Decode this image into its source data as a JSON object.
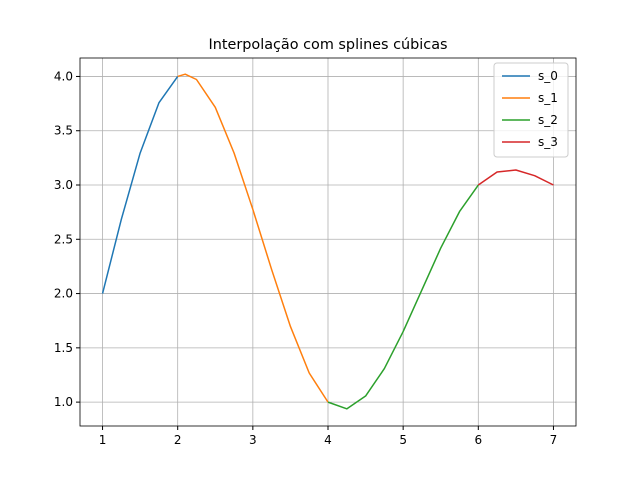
{
  "chart_data": {
    "type": "line",
    "title": "Interpolação com splines cúbicas",
    "series": [
      {
        "name": "s_0",
        "color": "#1f77b4",
        "x": [
          1,
          1.25,
          1.5,
          1.75,
          2
        ],
        "values": [
          2.0,
          2.684,
          3.294,
          3.757,
          4.0
        ]
      },
      {
        "name": "s_1",
        "color": "#ff7f0e",
        "x": [
          2,
          2.1,
          2.25,
          2.5,
          2.75,
          3,
          3.25,
          3.5,
          3.75,
          4
        ],
        "values": [
          4.0,
          4.021,
          3.972,
          3.716,
          3.295,
          2.775,
          2.221,
          1.697,
          1.268,
          1.0
        ]
      },
      {
        "name": "s_2",
        "color": "#2ca02c",
        "x": [
          4,
          4.25,
          4.5,
          4.75,
          5,
          5.25,
          5.5,
          5.75,
          6
        ],
        "values": [
          1.0,
          0.938,
          1.056,
          1.309,
          1.65,
          2.035,
          2.419,
          2.755,
          3.0
        ]
      },
      {
        "name": "s_3",
        "color": "#d62728",
        "x": [
          6,
          6.25,
          6.5,
          6.75,
          7
        ],
        "values": [
          3.0,
          3.12,
          3.138,
          3.086,
          3.0
        ]
      }
    ],
    "xlim": [
      0.7,
      7.3
    ],
    "ylim": [
      0.78,
      4.17
    ],
    "xticks": [
      1,
      2,
      3,
      4,
      5,
      6,
      7
    ],
    "yticks": [
      {
        "value": 1,
        "label": "1.0"
      },
      {
        "value": 1.5,
        "label": "1.5"
      },
      {
        "value": 2,
        "label": "2.0"
      },
      {
        "value": 2.5,
        "label": "2.5"
      },
      {
        "value": 3,
        "label": "3.0"
      },
      {
        "value": 3.5,
        "label": "3.5"
      },
      {
        "value": 4,
        "label": "4.0"
      }
    ],
    "grid": true,
    "legend": "upper right"
  }
}
